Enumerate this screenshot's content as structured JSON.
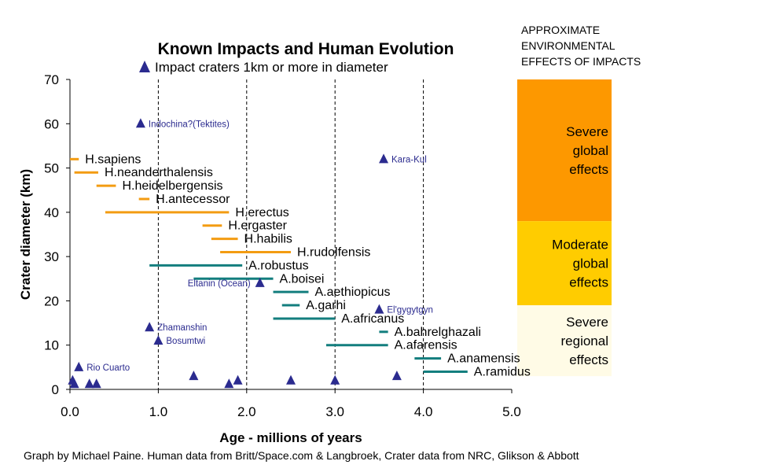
{
  "chart_data": {
    "type": "scatter",
    "title": "Known Impacts and Human Evolution",
    "legend": "Impact craters 1km or more in diameter",
    "xlabel": "Age - millions of years",
    "ylabel": "Crater diameter (km)",
    "xlim": [
      0,
      5
    ],
    "ylim": [
      0,
      70
    ],
    "x_ticks": [
      "0.0",
      "1.0",
      "2.0",
      "3.0",
      "4.0",
      "5.0"
    ],
    "y_ticks": [
      "0",
      "10",
      "20",
      "30",
      "40",
      "50",
      "60",
      "70"
    ],
    "vertical_gridlines": "dashed",
    "series": [
      {
        "name": "Impact craters 1km or more in diameter",
        "marker": "triangle",
        "color": "#2b2b8f",
        "points": [
          {
            "x": 0.8,
            "y": 60,
            "label": "Indochina?(Tektites)"
          },
          {
            "x": 3.55,
            "y": 52,
            "label": "Kara-Kul"
          },
          {
            "x": 2.15,
            "y": 24,
            "label": "Eltanin (Ocean)"
          },
          {
            "x": 3.5,
            "y": 18,
            "label": "El'gygytgyn"
          },
          {
            "x": 0.9,
            "y": 14,
            "label": "Zhamanshin"
          },
          {
            "x": 1.0,
            "y": 11,
            "label": "Bosumtwi"
          },
          {
            "x": 0.1,
            "y": 5,
            "label": "Rio Cuarto"
          },
          {
            "x": 0.03,
            "y": 2,
            "label": ""
          },
          {
            "x": 0.05,
            "y": 1.2,
            "label": ""
          },
          {
            "x": 0.22,
            "y": 1.2,
            "label": ""
          },
          {
            "x": 0.3,
            "y": 1.2,
            "label": ""
          },
          {
            "x": 1.4,
            "y": 3,
            "label": ""
          },
          {
            "x": 1.8,
            "y": 1.2,
            "label": ""
          },
          {
            "x": 1.9,
            "y": 2,
            "label": ""
          },
          {
            "x": 2.5,
            "y": 2,
            "label": ""
          },
          {
            "x": 3.0,
            "y": 2,
            "label": ""
          },
          {
            "x": 3.7,
            "y": 3,
            "label": ""
          }
        ]
      }
    ],
    "human_species": [
      {
        "name": "H.sapiens",
        "start": 0.0,
        "end": 0.1,
        "y": 52,
        "color": "#f39c12"
      },
      {
        "name": "H.neanderthalensis",
        "start": 0.05,
        "end": 0.32,
        "y": 49,
        "color": "#f39c12"
      },
      {
        "name": "H.heidelbergensis",
        "start": 0.3,
        "end": 0.52,
        "y": 46,
        "color": "#f39c12"
      },
      {
        "name": "H.antecessor",
        "start": 0.78,
        "end": 0.9,
        "y": 43,
        "color": "#f39c12"
      },
      {
        "name": "H.erectus",
        "start": 0.4,
        "end": 1.8,
        "y": 40,
        "color": "#f39c12"
      },
      {
        "name": "H.ergaster",
        "start": 1.5,
        "end": 1.72,
        "y": 37,
        "color": "#f39c12"
      },
      {
        "name": "H.habilis",
        "start": 1.6,
        "end": 1.9,
        "y": 34,
        "color": "#f39c12"
      },
      {
        "name": "H.rudolfensis",
        "start": 1.7,
        "end": 2.5,
        "y": 31,
        "color": "#f39c12"
      },
      {
        "name": "A.robustus",
        "start": 0.9,
        "end": 1.95,
        "y": 28,
        "color": "#137e7e"
      },
      {
        "name": "A.boisei",
        "start": 1.4,
        "end": 2.3,
        "y": 25,
        "color": "#137e7e"
      },
      {
        "name": "A.aethiopicus",
        "start": 2.3,
        "end": 2.7,
        "y": 22,
        "color": "#137e7e"
      },
      {
        "name": "A.garhi",
        "start": 2.4,
        "end": 2.6,
        "y": 19,
        "color": "#137e7e"
      },
      {
        "name": "A.africanus",
        "start": 2.3,
        "end": 3.0,
        "y": 16,
        "color": "#137e7e"
      },
      {
        "name": "A.bahrelghazali",
        "start": 3.5,
        "end": 3.6,
        "y": 13,
        "color": "#137e7e"
      },
      {
        "name": "A.afarensis",
        "start": 2.9,
        "end": 3.6,
        "y": 10,
        "color": "#137e7e"
      },
      {
        "name": "A.anamensis",
        "start": 3.9,
        "end": 4.2,
        "y": 7,
        "color": "#137e7e"
      },
      {
        "name": "A.ramidus",
        "start": 4.0,
        "end": 4.5,
        "y": 4,
        "color": "#137e7e"
      }
    ],
    "environmental_effects": {
      "header": [
        "APPROXIMATE",
        "ENVIRONMENTAL",
        "EFFECTS OF IMPACTS"
      ],
      "bands": [
        {
          "range": [
            38,
            70
          ],
          "color": "#fd9800",
          "lines": [
            "Severe",
            "global",
            "effects"
          ]
        },
        {
          "range": [
            19,
            38
          ],
          "color": "#ffcc00",
          "lines": [
            "Moderate",
            "global",
            "effects"
          ]
        },
        {
          "range": [
            3,
            19
          ],
          "color": "#fffbe6",
          "lines": [
            "Severe",
            "regional",
            "effects"
          ]
        }
      ]
    },
    "credit": "Graph by Michael Paine. Human data from Britt/Space.com & Langbroek, Crater data from NRC, Glikson & Abbott"
  }
}
